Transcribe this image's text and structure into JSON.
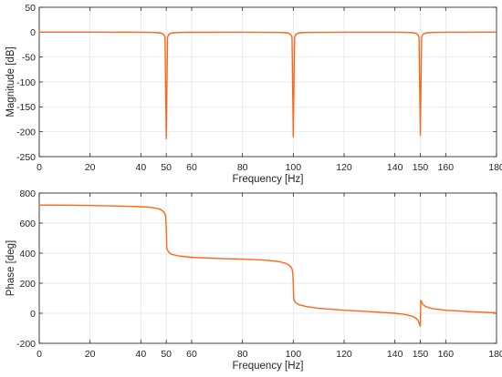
{
  "chart_data": [
    {
      "type": "line",
      "xlabel": "Frequency [Hz]",
      "ylabel": "Magnitude [dB]",
      "xlim": [
        0,
        180
      ],
      "ylim": [
        -250,
        50
      ],
      "xticks": [
        0,
        20,
        40,
        50,
        60,
        80,
        100,
        120,
        140,
        150,
        160,
        180
      ],
      "yticks": [
        50,
        0,
        -50,
        -100,
        -150,
        -200,
        -250
      ],
      "grid": true,
      "series_color": "#ff6619",
      "series": [
        {
          "x": [
            0,
            20,
            40,
            45,
            47,
            48,
            49,
            49.5,
            50,
            50.5,
            51,
            52,
            53,
            55,
            60,
            80,
            95,
            97,
            98,
            99,
            99.5,
            100,
            100.5,
            101,
            102,
            103,
            105,
            120,
            140,
            145,
            147,
            148,
            149,
            149.5,
            150,
            150.5,
            151,
            152,
            153,
            155,
            160,
            180
          ],
          "values": [
            0,
            0,
            -0.2,
            -0.6,
            -1.2,
            -2,
            -4.5,
            -10,
            -214,
            -10,
            -4.5,
            -2,
            -1.2,
            -0.6,
            -0.3,
            -0.2,
            -0.6,
            -1.2,
            -2,
            -4.5,
            -10,
            -210,
            -10,
            -4.5,
            -2,
            -1.2,
            -0.6,
            -0.2,
            -0.2,
            -0.6,
            -1.2,
            -2,
            -4.5,
            -10,
            -207,
            -10,
            -4.5,
            -2,
            -1.2,
            -0.6,
            -0.2,
            0
          ]
        }
      ]
    },
    {
      "type": "line",
      "xlabel": "Frequency [Hz]",
      "ylabel": "Phase [deg]",
      "xlim": [
        0,
        180
      ],
      "ylim": [
        -200,
        800
      ],
      "xticks": [
        0,
        20,
        40,
        50,
        60,
        80,
        100,
        120,
        140,
        150,
        160,
        180
      ],
      "yticks": [
        800,
        600,
        400,
        200,
        0,
        -200
      ],
      "grid": true,
      "series_color": "#ff6619",
      "series": [
        {
          "x": [
            0,
            10,
            20,
            30,
            35,
            40,
            43,
            45,
            47,
            48,
            49,
            49.5,
            49.8,
            50,
            50.2,
            51,
            52,
            55,
            60,
            70,
            80,
            85,
            90,
            93,
            95,
            97,
            98,
            99,
            99.5,
            99.8,
            100,
            100.2,
            101,
            102,
            105,
            110,
            120,
            130,
            140,
            143,
            145,
            147,
            148,
            149,
            149.5,
            149.8,
            150,
            150.2,
            151,
            152,
            155,
            160,
            170,
            180
          ],
          "values": [
            720,
            719,
            717,
            714,
            712,
            709,
            706,
            702,
            695,
            688,
            675,
            660,
            640,
            570,
            430,
            405,
            393,
            381,
            372,
            365,
            360,
            357,
            352,
            347,
            341,
            332,
            324,
            310,
            295,
            270,
            200,
            90,
            70,
            58,
            45,
            33,
            20,
            11,
            0,
            -6,
            -12,
            -21,
            -30,
            -45,
            -62,
            -80,
            -85,
            85,
            60,
            45,
            30,
            20,
            10,
            3
          ]
        }
      ]
    }
  ]
}
